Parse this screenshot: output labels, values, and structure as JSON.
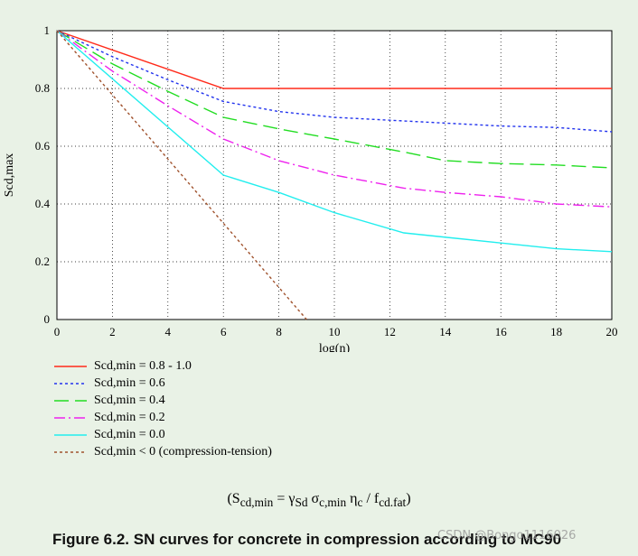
{
  "chart_data": {
    "type": "line",
    "title": "",
    "xlabel": "log(n)",
    "ylabel": "Scd,max",
    "xlim": [
      0,
      20
    ],
    "ylim": [
      0,
      1
    ],
    "xticks": [
      0,
      2,
      4,
      6,
      8,
      10,
      12,
      14,
      16,
      18,
      20
    ],
    "yticks": [
      0,
      0.2,
      0.4,
      0.6,
      0.8,
      1
    ],
    "ytick_labels": [
      "0",
      "0.2",
      "0.4",
      "0.6",
      "0.8",
      "1"
    ],
    "grid": true,
    "series": [
      {
        "name": "Scd,min = 0.8 - 1.0",
        "color": "#ff2a1a",
        "style": "solid",
        "x": [
          0,
          6,
          20
        ],
        "y": [
          1,
          0.8,
          0.8
        ]
      },
      {
        "name": "Scd,min = 0.6",
        "color": "#2233ee",
        "style": "dotted",
        "x": [
          0,
          2,
          4,
          6,
          8,
          10,
          12,
          14,
          16,
          18,
          20
        ],
        "y": [
          1,
          0.91,
          0.83,
          0.755,
          0.72,
          0.7,
          0.69,
          0.68,
          0.67,
          0.665,
          0.65
        ]
      },
      {
        "name": "Scd,min = 0.4",
        "color": "#22dd22",
        "style": "dashed",
        "x": [
          0,
          2,
          4,
          6,
          8,
          10,
          12.5,
          14,
          16,
          18,
          20
        ],
        "y": [
          1,
          0.885,
          0.79,
          0.7,
          0.66,
          0.625,
          0.58,
          0.55,
          0.54,
          0.535,
          0.525
        ]
      },
      {
        "name": "Scd,min = 0.2",
        "color": "#ee22ee",
        "style": "dashdot",
        "x": [
          0,
          2,
          4,
          6,
          8,
          10,
          12.5,
          14,
          16,
          18,
          20
        ],
        "y": [
          1,
          0.86,
          0.74,
          0.625,
          0.55,
          0.5,
          0.455,
          0.44,
          0.425,
          0.4,
          0.39
        ]
      },
      {
        "name": "Scd,min = 0.0",
        "color": "#22eeee",
        "style": "solid",
        "x": [
          0,
          6,
          8,
          10,
          12.5,
          16,
          18,
          20
        ],
        "y": [
          1,
          0.5,
          0.44,
          0.37,
          0.3,
          0.265,
          0.245,
          0.235
        ]
      },
      {
        "name": "Scd,min < 0 (compression-tension)",
        "color": "#a0522d",
        "style": "dotted",
        "x": [
          0,
          9
        ],
        "y": [
          1,
          0
        ]
      }
    ]
  },
  "formula": {
    "open": "(S",
    "sub1": "cd,min",
    "eq": " = γ",
    "sub2": "Sd",
    "sigma": " σ",
    "sub3": "c,min",
    "eta": " η",
    "sub4": "c",
    "slash": " / f",
    "sub5": "cd.fat",
    "close": ")"
  },
  "caption": "Figure 6.2. SN curves for concrete in compression according to MC90",
  "watermark": "CSDN @Bongo1116026"
}
